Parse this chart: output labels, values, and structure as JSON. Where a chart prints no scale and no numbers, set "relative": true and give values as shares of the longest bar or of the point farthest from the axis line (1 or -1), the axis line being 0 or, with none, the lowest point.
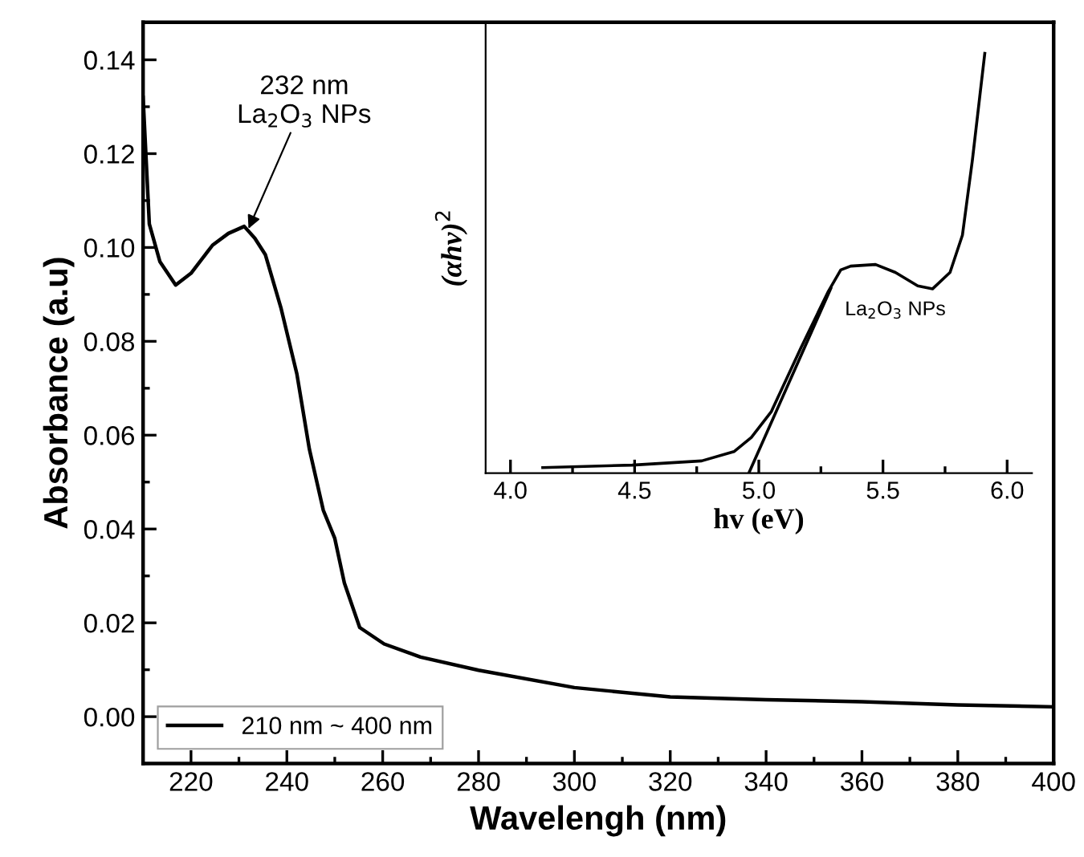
{
  "chart_data": [
    {
      "type": "line",
      "xlabel": "Wavelengh (nm)",
      "ylabel": "Absorbance (a.u)",
      "legend": "bottom left",
      "series": [
        {
          "name": "210 nm ~ 400 nm",
          "color": "#000000",
          "x": [
            210,
            211.3,
            213.5,
            216.8,
            220,
            224.5,
            227.8,
            231.1,
            233.3,
            235.5,
            238.8,
            242.1,
            244.7,
            247.6,
            250,
            252,
            255.2,
            260.3,
            267.9,
            280,
            300,
            320,
            340,
            360,
            380,
            400
          ],
          "values": [
            0.132,
            0.105,
            0.097,
            0.092,
            0.0945,
            0.1005,
            0.103,
            0.1045,
            0.102,
            0.0985,
            0.087,
            0.073,
            0.057,
            0.044,
            0.038,
            0.0285,
            0.019,
            0.0155,
            0.0127,
            0.0099,
            0.0062,
            0.0042,
            0.0036,
            0.0032,
            0.0025,
            0.0021
          ]
        }
      ],
      "xlim": [
        210,
        400
      ],
      "ylim": [
        -0.01,
        0.148
      ],
      "xticks": [
        220,
        240,
        260,
        280,
        300,
        320,
        340,
        360,
        380,
        400
      ],
      "yticks": [
        {
          "value": 0,
          "label": "0.00"
        },
        {
          "value": 0.02,
          "label": "0.02"
        },
        {
          "value": 0.04,
          "label": "0.04"
        },
        {
          "value": 0.06,
          "label": "0.06"
        },
        {
          "value": 0.08,
          "label": "0.08"
        },
        {
          "value": 0.1,
          "label": "0.10"
        },
        {
          "value": 0.12,
          "label": "0.12"
        },
        {
          "value": 0.14,
          "label": "0.14"
        }
      ],
      "annotations": [
        {
          "text": "232 nm\nLa$_{2}$O$_{3}$ NPs",
          "x": 232,
          "y": 0.104
        }
      ]
    },
    {
      "type": "line",
      "relative": true,
      "xlabel": "hv (eV)",
      "ylabel": "(αhv)$^{2}$",
      "tick_labels": "x",
      "series": [
        {
          "color": "#000000",
          "x": [
            4.13,
            4.49,
            4.77,
            4.9,
            4.97,
            5.05,
            5.17,
            5.28,
            5.33,
            5.37,
            5.47,
            5.55,
            5.64,
            5.7,
            5.77,
            5.82,
            5.86,
            5.89,
            5.91
          ],
          "values": [
            0.013,
            0.019,
            0.029,
            0.051,
            0.085,
            0.146,
            0.299,
            0.433,
            0.484,
            0.493,
            0.497,
            0.478,
            0.446,
            0.439,
            0.478,
            0.567,
            0.745,
            0.898,
            1.0
          ]
        },
        {
          "color": "#000000",
          "x": [
            4.96,
            5.29
          ],
          "values": [
            0,
            0.44
          ]
        }
      ],
      "xlim": [
        3.9,
        6.1
      ],
      "xticks": [
        {
          "value": 4,
          "label": "4.0"
        },
        {
          "value": 4.5,
          "label": "4.5"
        },
        {
          "value": 5,
          "label": "5.0"
        },
        {
          "value": 5.5,
          "label": "5.5"
        },
        {
          "value": 6,
          "label": "6.0"
        }
      ],
      "annotations": [
        "La$_{2}$O$_{3}$ NPs"
      ]
    }
  ]
}
